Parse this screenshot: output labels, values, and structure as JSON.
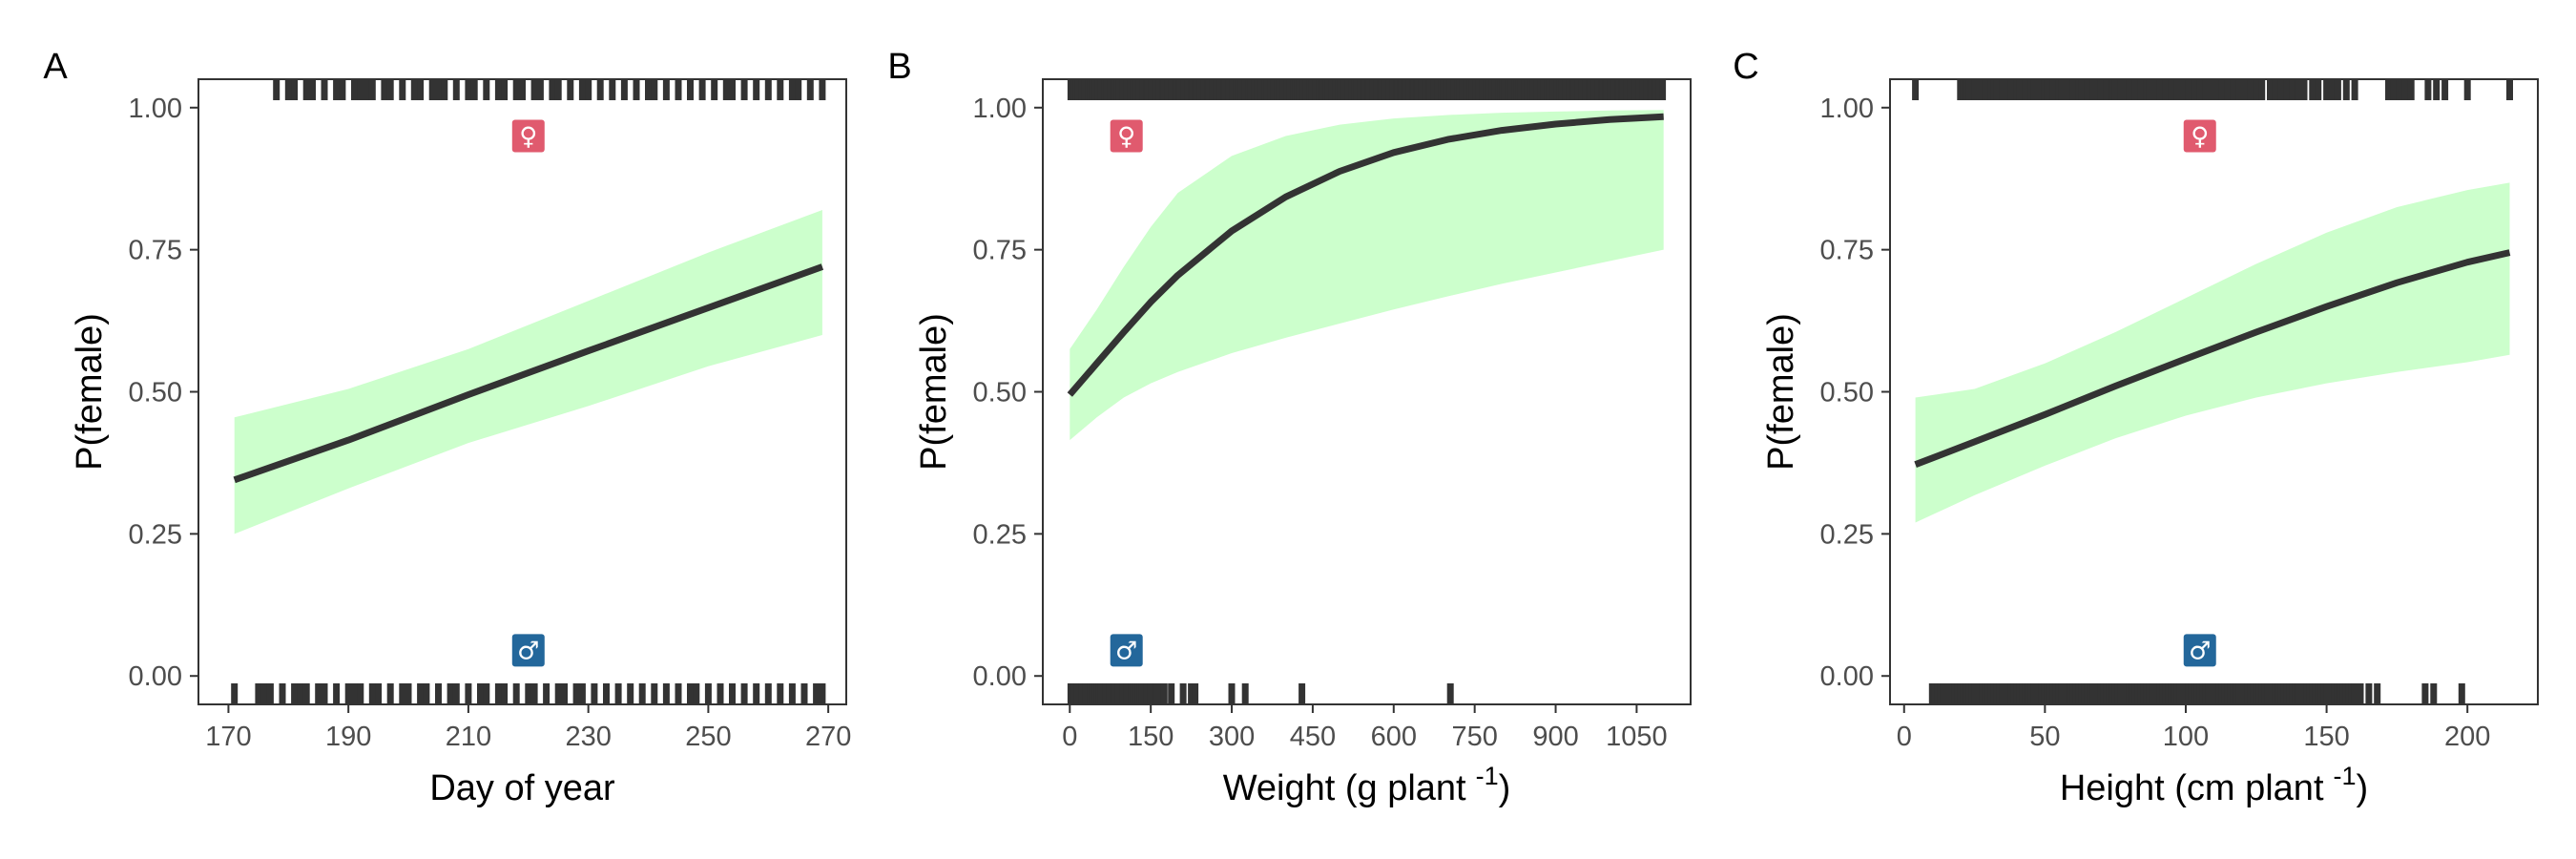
{
  "chart_data": [
    {
      "type": "line",
      "panel_label": "A",
      "xlabel": "Day of year",
      "xlabel_sup": "",
      "xlabel_end": "",
      "ylabel": "P(female)",
      "xlim": [
        165,
        273
      ],
      "ylim": [
        -0.05,
        1.05
      ],
      "xticks": [
        170,
        190,
        210,
        230,
        250,
        270
      ],
      "yticks": [
        0.0,
        0.25,
        0.5,
        0.75,
        1.0
      ],
      "ytick_labels": [
        "0.00",
        "0.25",
        "0.50",
        "0.75",
        "1.00"
      ],
      "colors": {
        "ribbon": "#ccffcc",
        "line": "#333333",
        "female_badge": "#e05a6e",
        "male_badge": "#23679b",
        "rug": "#333333"
      },
      "symbols": {
        "female": "♀",
        "female_x": 220,
        "female_y": 0.95,
        "male": "♂",
        "male_x": 220,
        "male_y": 0.045
      },
      "fit": {
        "x": [
          171,
          190,
          210,
          230,
          250,
          269
        ],
        "y": [
          0.345,
          0.415,
          0.495,
          0.572,
          0.648,
          0.72
        ],
        "lower": [
          0.25,
          0.33,
          0.41,
          0.475,
          0.545,
          0.6
        ],
        "upper": [
          0.455,
          0.505,
          0.575,
          0.66,
          0.745,
          0.82
        ]
      },
      "rug_female": [
        178,
        180,
        181,
        183,
        184,
        186,
        188,
        189,
        191,
        192,
        193,
        194,
        196,
        197,
        199,
        201,
        202,
        204,
        205,
        206,
        208,
        210,
        211,
        213,
        215,
        216,
        218,
        219,
        221,
        222,
        224,
        225,
        227,
        229,
        230,
        232,
        234,
        236,
        238,
        240,
        241,
        243,
        245,
        247,
        249,
        251,
        253,
        254,
        256,
        258,
        260,
        262,
        264,
        265,
        267,
        269
      ],
      "rug_male": [
        171,
        175,
        176,
        177,
        179,
        181,
        182,
        183,
        185,
        186,
        188,
        190,
        191,
        192,
        194,
        195,
        197,
        199,
        200,
        202,
        203,
        205,
        207,
        208,
        210,
        212,
        213,
        215,
        216,
        218,
        220,
        221,
        223,
        225,
        226,
        228,
        229,
        231,
        233,
        235,
        237,
        239,
        241,
        243,
        245,
        247,
        248,
        250,
        252,
        254,
        256,
        258,
        260,
        262,
        264,
        266,
        268,
        269
      ]
    },
    {
      "type": "line",
      "panel_label": "B",
      "xlabel": "Weight (g plant",
      "xlabel_sup": "-1",
      "xlabel_end": ")",
      "ylabel": "P(female)",
      "xlim": [
        -50,
        1150
      ],
      "ylim": [
        -0.05,
        1.05
      ],
      "xticks": [
        0,
        150,
        300,
        450,
        600,
        750,
        900,
        1050
      ],
      "yticks": [
        0.0,
        0.25,
        0.5,
        0.75,
        1.0
      ],
      "ytick_labels": [
        "0.00",
        "0.25",
        "0.50",
        "0.75",
        "1.00"
      ],
      "colors": {
        "ribbon": "#ccffcc",
        "line": "#333333",
        "female_badge": "#e05a6e",
        "male_badge": "#23679b",
        "rug": "#333333"
      },
      "symbols": {
        "female": "♀",
        "female_x": 105,
        "female_y": 0.95,
        "male": "♂",
        "male_x": 105,
        "male_y": 0.045
      },
      "fit": {
        "x": [
          0,
          50,
          100,
          150,
          200,
          300,
          400,
          500,
          600,
          700,
          800,
          900,
          1000,
          1100
        ],
        "y": [
          0.495,
          0.55,
          0.605,
          0.658,
          0.705,
          0.783,
          0.843,
          0.888,
          0.921,
          0.944,
          0.96,
          0.971,
          0.979,
          0.984
        ],
        "lower": [
          0.415,
          0.455,
          0.49,
          0.515,
          0.535,
          0.568,
          0.595,
          0.62,
          0.645,
          0.668,
          0.69,
          0.71,
          0.73,
          0.75
        ],
        "upper": [
          0.575,
          0.645,
          0.72,
          0.79,
          0.85,
          0.915,
          0.95,
          0.97,
          0.981,
          0.987,
          0.991,
          0.993,
          0.995,
          0.996
        ]
      },
      "rug_female": [
        2,
        5,
        8,
        12,
        15,
        18,
        22,
        25,
        28,
        32,
        35,
        38,
        42,
        45,
        48,
        52,
        55,
        58,
        62,
        65,
        68,
        72,
        75,
        78,
        82,
        85,
        88,
        92,
        95,
        98,
        102,
        105,
        108,
        112,
        115,
        118,
        122,
        125,
        128,
        132,
        135,
        138,
        142,
        145,
        148,
        152,
        155,
        158,
        162,
        165,
        168,
        172,
        175,
        178,
        182,
        185,
        188,
        192,
        195,
        198,
        202,
        205,
        208,
        212,
        215,
        218,
        222,
        225,
        228,
        232,
        235,
        238,
        242,
        245,
        248,
        252,
        255,
        258,
        262,
        265,
        268,
        272,
        275,
        278,
        282,
        285,
        288,
        292,
        295,
        298,
        302,
        305,
        308,
        312,
        315,
        318,
        322,
        325,
        328,
        332,
        335,
        338,
        342,
        345,
        348,
        352,
        355,
        358,
        362,
        365,
        368,
        372,
        375,
        378,
        382,
        385,
        388,
        392,
        395,
        398,
        402,
        405,
        408,
        412,
        415,
        418,
        422,
        425,
        428,
        432,
        435,
        438,
        442,
        445,
        448,
        452,
        455,
        458,
        462,
        465,
        468,
        472,
        475,
        478,
        482,
        485,
        488,
        492,
        495,
        498,
        502,
        505,
        508,
        512,
        515,
        518,
        522,
        525,
        528,
        532,
        535,
        538,
        542,
        545,
        548,
        552,
        555,
        558,
        562,
        565,
        568,
        572,
        575,
        578,
        582,
        585,
        588,
        592,
        595,
        598,
        602,
        605,
        608,
        612,
        615,
        618,
        622,
        625,
        628,
        632,
        635,
        638,
        642,
        645,
        648,
        652,
        655,
        658,
        662,
        665,
        668,
        672,
        675,
        678,
        682,
        685,
        688,
        692,
        695,
        698,
        702,
        705,
        708,
        712,
        715,
        718,
        722,
        725,
        728,
        732,
        735,
        738,
        742,
        745,
        748,
        752,
        755,
        758,
        762,
        765,
        768,
        772,
        775,
        778,
        782,
        785,
        788,
        792,
        795,
        798,
        802,
        805,
        808,
        812,
        815,
        818,
        822,
        825,
        828,
        832,
        835,
        838,
        842,
        845,
        848,
        852,
        855,
        858,
        862,
        865,
        868,
        872,
        875,
        878,
        882,
        885,
        888,
        892,
        895,
        898,
        902,
        905,
        908,
        912,
        915,
        918,
        922,
        925,
        928,
        932,
        935,
        938,
        942,
        945,
        948,
        952,
        955,
        958,
        962,
        965,
        968,
        972,
        975,
        978,
        982,
        985,
        988,
        992,
        995,
        998,
        1002,
        1005,
        1008,
        1012,
        1015,
        1018,
        1022,
        1025,
        1028,
        1032,
        1035,
        1038,
        1042,
        1045,
        1048,
        1052,
        1055,
        1058,
        1062,
        1065,
        1068,
        1072,
        1075,
        1078,
        1082,
        1085,
        1088,
        1092,
        1095,
        1098
      ],
      "rug_male": [
        2,
        6,
        10,
        14,
        18,
        22,
        26,
        30,
        34,
        38,
        42,
        46,
        50,
        54,
        58,
        62,
        66,
        70,
        74,
        78,
        82,
        86,
        90,
        94,
        98,
        102,
        106,
        110,
        114,
        118,
        122,
        126,
        130,
        134,
        138,
        142,
        146,
        150,
        154,
        160,
        168,
        175,
        188,
        210,
        225,
        232,
        300,
        325,
        430,
        705
      ]
    },
    {
      "type": "line",
      "panel_label": "C",
      "xlabel": "Height (cm plant",
      "xlabel_sup": "-1",
      "xlabel_end": ")",
      "ylabel": "P(female)",
      "xlim": [
        -5,
        225
      ],
      "ylim": [
        -0.05,
        1.05
      ],
      "xticks": [
        0,
        50,
        100,
        150,
        200
      ],
      "yticks": [
        0.0,
        0.25,
        0.5,
        0.75,
        1.0
      ],
      "ytick_labels": [
        "0.00",
        "0.25",
        "0.50",
        "0.75",
        "1.00"
      ],
      "colors": {
        "ribbon": "#ccffcc",
        "line": "#333333",
        "female_badge": "#e05a6e",
        "male_badge": "#23679b",
        "rug": "#333333"
      },
      "symbols": {
        "female": "♀",
        "female_x": 105,
        "female_y": 0.95,
        "male": "♂",
        "male_x": 105,
        "male_y": 0.045
      },
      "fit": {
        "x": [
          4,
          25,
          50,
          75,
          100,
          125,
          150,
          175,
          200,
          215
        ],
        "y": [
          0.372,
          0.412,
          0.46,
          0.51,
          0.558,
          0.605,
          0.65,
          0.692,
          0.728,
          0.745
        ],
        "lower": [
          0.27,
          0.318,
          0.37,
          0.418,
          0.458,
          0.49,
          0.515,
          0.535,
          0.552,
          0.565
        ],
        "upper": [
          0.49,
          0.505,
          0.55,
          0.605,
          0.665,
          0.725,
          0.78,
          0.825,
          0.855,
          0.868
        ]
      },
      "rug_female": [
        4,
        20,
        21,
        22,
        23,
        25,
        26,
        27,
        29,
        31,
        32,
        33,
        35,
        36,
        38,
        40,
        41,
        43,
        45,
        46,
        48,
        50,
        51,
        53,
        55,
        56,
        58,
        60,
        62,
        63,
        65,
        67,
        68,
        70,
        72,
        74,
        75,
        77,
        79,
        80,
        82,
        84,
        86,
        87,
        89,
        91,
        93,
        95,
        97,
        99,
        101,
        103,
        105,
        107,
        109,
        111,
        113,
        115,
        117,
        119,
        121,
        123,
        125,
        127,
        130,
        132,
        134,
        136,
        138,
        140,
        142,
        145,
        147,
        150,
        152,
        154,
        157,
        160,
        172,
        174,
        176,
        178,
        180,
        186,
        189,
        192,
        200,
        215
      ],
      "rug_male": [
        10,
        11,
        12,
        13,
        14,
        15,
        16,
        17,
        18,
        19,
        20,
        21,
        22,
        23,
        24,
        25,
        26,
        27,
        28,
        29,
        30,
        31,
        32,
        33,
        34,
        35,
        36,
        37,
        38,
        39,
        40,
        41,
        42,
        43,
        44,
        45,
        46,
        47,
        48,
        49,
        50,
        51,
        52,
        53,
        54,
        55,
        56,
        57,
        58,
        59,
        60,
        61,
        62,
        63,
        64,
        65,
        66,
        67,
        68,
        69,
        70,
        71,
        72,
        73,
        74,
        75,
        76,
        77,
        78,
        79,
        80,
        81,
        82,
        83,
        84,
        85,
        86,
        87,
        88,
        89,
        90,
        91,
        92,
        93,
        94,
        95,
        96,
        97,
        98,
        99,
        100,
        101,
        102,
        103,
        104,
        105,
        106,
        107,
        108,
        109,
        110,
        111,
        112,
        113,
        114,
        115,
        116,
        117,
        118,
        119,
        120,
        121,
        122,
        123,
        124,
        125,
        126,
        127,
        128,
        129,
        130,
        131,
        132,
        133,
        134,
        135,
        136,
        137,
        138,
        139,
        140,
        141,
        142,
        143,
        144,
        145,
        146,
        147,
        148,
        149,
        150,
        151,
        152,
        153,
        154,
        155,
        156,
        157,
        158,
        159,
        160,
        162,
        165,
        168,
        185,
        188,
        198
      ]
    }
  ]
}
